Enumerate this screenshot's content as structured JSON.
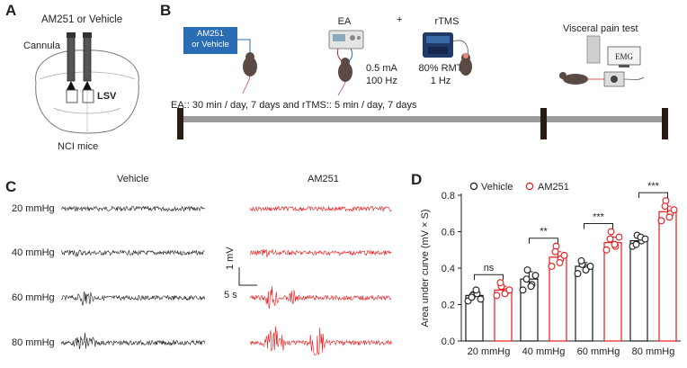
{
  "panelA": {
    "letter": "A",
    "title": "AM251 or Vehicle",
    "cannula": "Cannula",
    "region": "LSV",
    "caption": "NCI mice"
  },
  "panelB": {
    "letter": "B",
    "drug_box_line1": "AM251",
    "drug_box_line2": "or Vehicle",
    "ea_title": "EA",
    "plus": "+",
    "rtms_title": "rTMS",
    "ea_param1": "0.5 mA",
    "ea_param2": "100 Hz",
    "rtms_param1": "80% RMT",
    "rtms_param2": "1 Hz",
    "visceral": "Visceral pain test",
    "emg": "EMG",
    "timeline": "EA:: 30 min / day, 7 days and rTMS:: 5 min / day, 7 days"
  },
  "panelC": {
    "letter": "C",
    "col_vehicle": "Vehicle",
    "col_am251": "AM251",
    "rows": [
      "20 mmHg",
      "40 mmHg",
      "60 mmHg",
      "80 mmHg"
    ],
    "scale_v": "1 mV",
    "scale_t": "5 s",
    "vehicle_color": "#1a1a1a",
    "am251_color": "#e8191c"
  },
  "panelD": {
    "letter": "D"
  },
  "chart_data": {
    "type": "bar",
    "title": "",
    "xlabel": "",
    "ylabel": "Area under curve (mV × S)",
    "ylim": [
      0.0,
      0.8
    ],
    "yticks": [
      "0.0",
      "0.2",
      "0.4",
      "0.6",
      "0.8"
    ],
    "categories": [
      "20 mmHg",
      "40 mmHg",
      "60 mmHg",
      "80 mmHg"
    ],
    "legend_position": "top-left",
    "series": [
      {
        "name": "Vehicle",
        "color": "#1a1a1a",
        "values": [
          0.25,
          0.34,
          0.41,
          0.55
        ],
        "errors": [
          0.02,
          0.04,
          0.02,
          0.02
        ],
        "points": [
          [
            0.22,
            0.25,
            0.26,
            0.24,
            0.28,
            0.23
          ],
          [
            0.28,
            0.39,
            0.31,
            0.34,
            0.3,
            0.36
          ],
          [
            0.37,
            0.42,
            0.4,
            0.44,
            0.39,
            0.41
          ],
          [
            0.52,
            0.58,
            0.55,
            0.53,
            0.57,
            0.56
          ]
        ]
      },
      {
        "name": "AM251",
        "color": "#e8191c",
        "values": [
          0.28,
          0.46,
          0.54,
          0.71
        ],
        "errors": [
          0.02,
          0.03,
          0.03,
          0.03
        ],
        "points": [
          [
            0.25,
            0.3,
            0.27,
            0.32,
            0.26,
            0.28
          ],
          [
            0.41,
            0.52,
            0.45,
            0.49,
            0.43,
            0.47
          ],
          [
            0.5,
            0.6,
            0.52,
            0.56,
            0.53,
            0.57
          ],
          [
            0.66,
            0.77,
            0.7,
            0.74,
            0.68,
            0.72
          ]
        ]
      }
    ],
    "significance": [
      "ns",
      "**",
      "***",
      "***"
    ]
  }
}
